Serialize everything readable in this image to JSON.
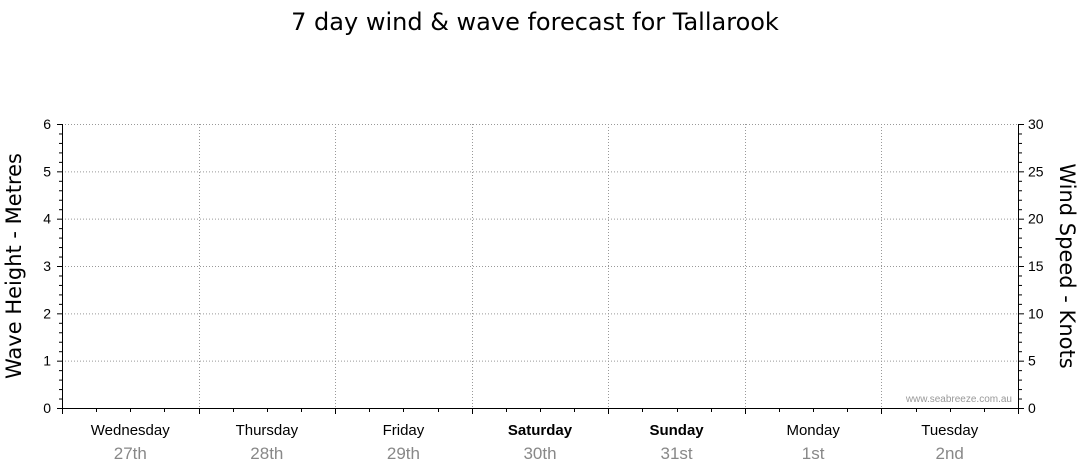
{
  "chart_data": {
    "type": "line",
    "title": "7 day wind & wave forecast for Tallarook",
    "ylabel_left": "Wave Height - Metres",
    "ylabel_right": "Wind Speed - Knots",
    "ylim_left": [
      0,
      6
    ],
    "ylim_right": [
      0,
      30
    ],
    "yticks_left": [
      "0",
      "1",
      "2",
      "3",
      "4",
      "5",
      "6"
    ],
    "yticks_right": [
      "0",
      "5",
      "10",
      "15",
      "20",
      "25",
      "30"
    ],
    "grid": true,
    "days": [
      {
        "day": "Wednesday",
        "date": "27th",
        "bold": false
      },
      {
        "day": "Thursday",
        "date": "28th",
        "bold": false
      },
      {
        "day": "Friday",
        "date": "29th",
        "bold": false
      },
      {
        "day": "Saturday",
        "date": "30th",
        "bold": true
      },
      {
        "day": "Sunday",
        "date": "31st",
        "bold": true
      },
      {
        "day": "Monday",
        "date": "1st",
        "bold": false
      },
      {
        "day": "Tuesday",
        "date": "2nd",
        "bold": false
      }
    ],
    "series": [],
    "watermark": "www.seabreeze.com.au"
  }
}
